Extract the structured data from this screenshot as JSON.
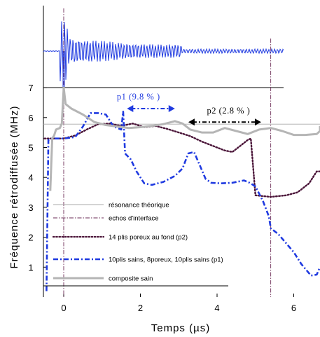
{
  "chart_data": {
    "type": "line",
    "xlabel": "Temps (µs)",
    "ylabel": "Fréquence rétrodiffusée (MHz)",
    "xlim": [
      -0.6,
      6.9
    ],
    "ylim": [
      0,
      7
    ],
    "x_ticks": [
      0,
      2,
      4,
      6
    ],
    "x_tick_labels": [
      "0",
      "2",
      "4",
      "6"
    ],
    "y_ticks": [
      1,
      2,
      3,
      4,
      5,
      6,
      7
    ],
    "y_tick_labels": [
      "1",
      "2",
      "3",
      "4",
      "5",
      "6",
      "7"
    ],
    "grid": false,
    "legend_position": "bottom-left",
    "colors": {
      "resonance": "#aaaaaa",
      "echos": "#6a2a55",
      "p2": "#4a1438",
      "p1": "#1f3ae0",
      "composite": "#b5b5b5",
      "signal": "#1f3ae0",
      "annot_p1": "#1f3ae0",
      "annot_p2": "#000000"
    },
    "series": [
      {
        "name": "résonance théorique",
        "key": "resonance",
        "style": "solid-thin",
        "x": [
          -0.6,
          6.9
        ],
        "y": [
          5.78,
          5.78
        ]
      },
      {
        "name": "echos d'interface",
        "key": "echos",
        "style": "dashdot-thin",
        "vertical_lines_x": [
          0.0,
          5.4
        ]
      },
      {
        "name": "14 plis poreux au fond (p2)",
        "key": "p2",
        "style": "dotted",
        "x": [
          -0.5,
          -0.3,
          0.0,
          0.3,
          0.6,
          0.9,
          1.2,
          1.5,
          1.8,
          2.1,
          2.4,
          2.7,
          3.0,
          3.3,
          3.6,
          3.9,
          4.2,
          4.4,
          4.6,
          4.8,
          4.88,
          5.0,
          5.4,
          5.8,
          6.1,
          6.4,
          6.6,
          6.9
        ],
        "y": [
          5.3,
          5.3,
          5.3,
          5.4,
          5.6,
          5.78,
          5.8,
          5.72,
          5.8,
          5.68,
          5.72,
          5.62,
          5.5,
          5.38,
          5.2,
          5.05,
          4.9,
          4.85,
          5.05,
          5.25,
          5.3,
          3.4,
          3.35,
          3.4,
          3.5,
          3.8,
          4.2,
          4.2
        ]
      },
      {
        "name": "10plis sains, 8poreux, 10plis sains (p1)",
        "key": "p1",
        "style": "dashdot",
        "x": [
          -0.45,
          -0.4,
          -0.3,
          0.0,
          0.3,
          0.5,
          0.7,
          0.9,
          1.1,
          1.3,
          1.5,
          1.55,
          1.6,
          1.75,
          1.9,
          2.1,
          2.3,
          2.6,
          2.9,
          3.1,
          3.25,
          3.4,
          3.55,
          3.7,
          3.85,
          4.1,
          4.4,
          4.7,
          4.85,
          5.0,
          5.2,
          5.35,
          5.4,
          5.6,
          5.8,
          6.0,
          6.2,
          6.45,
          6.6,
          6.9
        ],
        "y": [
          0.2,
          5.25,
          5.3,
          5.3,
          5.35,
          5.7,
          6.15,
          6.15,
          6.1,
          5.7,
          5.6,
          6.2,
          4.8,
          4.6,
          4.2,
          3.8,
          3.75,
          3.85,
          4.05,
          4.3,
          4.8,
          4.85,
          4.4,
          3.95,
          3.82,
          3.8,
          3.82,
          3.9,
          3.82,
          3.7,
          3.2,
          2.7,
          2.3,
          2.1,
          1.8,
          1.5,
          1.1,
          0.72,
          0.75,
          1.0
        ]
      },
      {
        "name": "composite sain",
        "key": "composite",
        "style": "solid-thick",
        "x": [
          -0.35,
          -0.3,
          -0.25,
          -0.2,
          -0.1,
          -0.05,
          0.0,
          0.05,
          0.2,
          0.5,
          0.8,
          1.1,
          1.4,
          1.7,
          2.0,
          2.3,
          2.6,
          2.9,
          3.1,
          3.3,
          3.6,
          3.9,
          4.2,
          4.5,
          4.8,
          5.1,
          5.4,
          5.7,
          6.0,
          6.3,
          6.6,
          6.8,
          6.9
        ],
        "y": [
          3.55,
          5.3,
          5.4,
          5.6,
          5.65,
          5.8,
          7.0,
          6.45,
          6.3,
          6.1,
          5.85,
          5.75,
          5.7,
          5.65,
          5.68,
          5.72,
          5.78,
          5.88,
          5.8,
          5.6,
          5.5,
          5.5,
          5.65,
          5.55,
          5.45,
          5.6,
          5.65,
          5.55,
          5.42,
          5.42,
          5.45,
          5.55,
          5.72
        ]
      }
    ],
    "annotations": [
      {
        "text": "p1 (9.8 % )",
        "key": "annot_p1",
        "x": 1.95,
        "y": 6.6,
        "arrow_x": [
          1.65,
          2.9
        ],
        "arrow_y": 6.3,
        "arrow_style": "dashdot"
      },
      {
        "text": "p2 (2.8 % )",
        "key": "annot_p2",
        "x": 4.3,
        "y": 6.13,
        "arrow_x": [
          3.25,
          5.15
        ],
        "arrow_y": 5.85,
        "arrow_style": "dashdot"
      }
    ],
    "signal_trace": {
      "description_free": true,
      "baseline_y_fraction": 0.0
    }
  }
}
